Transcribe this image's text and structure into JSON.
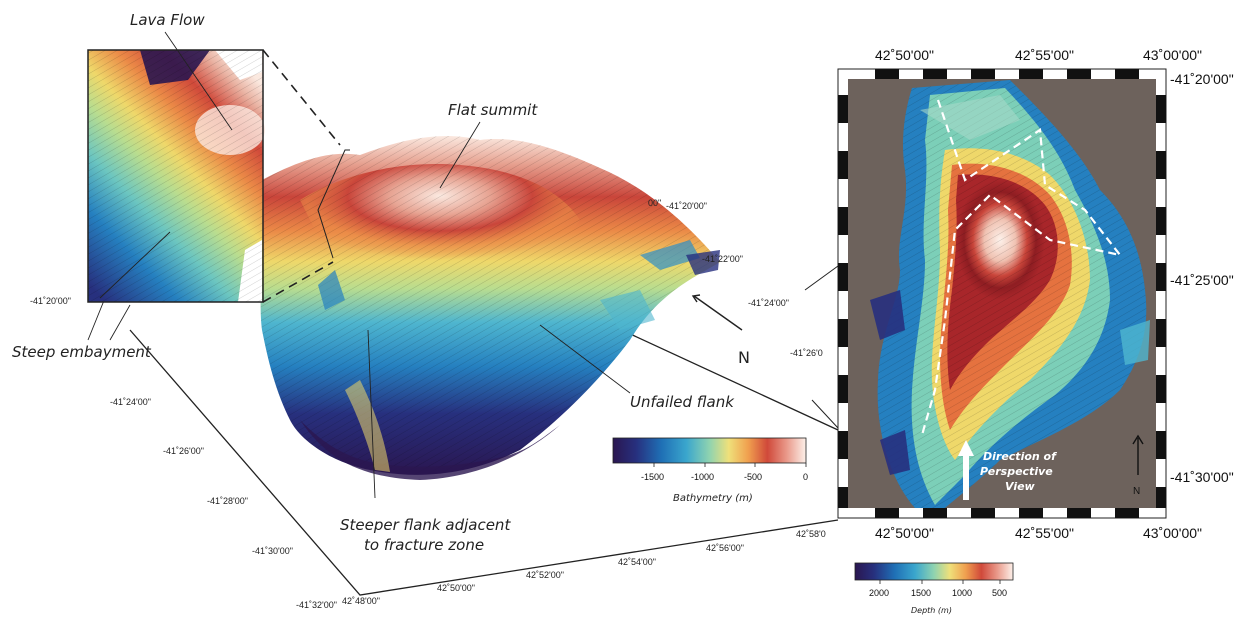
{
  "labels": {
    "lava_flow": "Lava Flow",
    "flat_summit": "Flat summit",
    "steep_embayment": "Steep embayment",
    "unfailed_flank": "Unfailed flank",
    "steeper_flank_line1": "Steeper flank adjacent",
    "steeper_flank_line2": "to fracture zone",
    "north": "N",
    "direction_line1": "Direction of",
    "direction_line2": "Perspective",
    "direction_line3": "View"
  },
  "perspective_axes": {
    "lat_left": [
      "-41˚20'00\"",
      "-41˚24'00\"",
      "-41˚26'00\"",
      "-41˚28'00\"",
      "-41˚30'00\"",
      "-41˚32'00\""
    ],
    "lat_right": [
      "00\"",
      "-41˚20'00\"",
      "-41˚22'00\"",
      "-41˚24'00\"",
      "-41˚26'0"
    ],
    "lon": [
      "42˚48'00\"",
      "42˚50'00\"",
      "42˚52'00\"",
      "42˚54'00\"",
      "42˚56'00\"",
      "42˚58'0"
    ],
    "inset_tick": "42"
  },
  "map_axes": {
    "top_lon": [
      "42˚50'00\"",
      "42˚55'00\"",
      "43˚00'00\""
    ],
    "bottom_lon": [
      "42˚50'00\"",
      "42˚55'00\"",
      "43˚00'00\""
    ],
    "right_lat": [
      "-41˚20'00\"",
      "-41˚25'00\"",
      "-41˚30'00\""
    ]
  },
  "bathymetry_legend": {
    "title": "Bathymetry (m)",
    "ticks": [
      "-1500",
      "-1000",
      "-500",
      "0"
    ],
    "colors": [
      "#2a1650",
      "#27307e",
      "#1f5ea8",
      "#2e8fc8",
      "#4fb6cf",
      "#7ccfb8",
      "#b9dd8f",
      "#efe07a",
      "#f3b35a",
      "#e5723f",
      "#c9453a",
      "#e6907a",
      "#f6d0c0",
      "#fdf1ea"
    ]
  },
  "depth_legend": {
    "title": "Depth (m)",
    "ticks": [
      "2000",
      "1500",
      "1000",
      "500"
    ],
    "colors": [
      "#2a1650",
      "#27307e",
      "#1f5ea8",
      "#2e8fc8",
      "#4fb6cf",
      "#7ccfb8",
      "#b9dd8f",
      "#efe07a",
      "#f3b35a",
      "#e5723f",
      "#c9453a",
      "#e6907a",
      "#f6d0c0",
      "#fdf1ea"
    ]
  }
}
